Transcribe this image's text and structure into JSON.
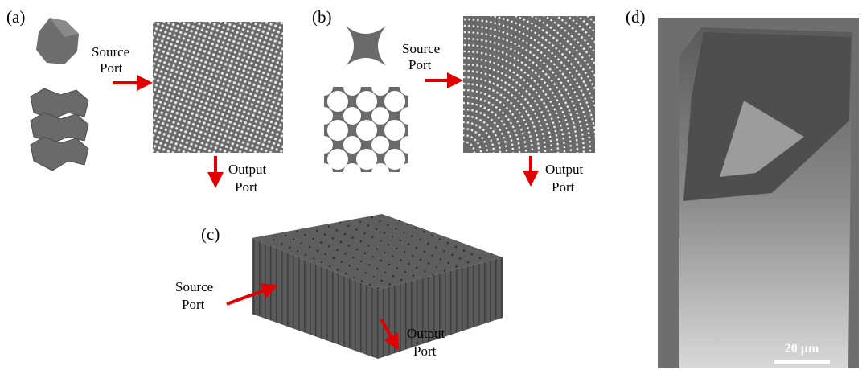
{
  "panels": {
    "a": {
      "label": "(a)",
      "source_port": [
        "Source",
        "Port"
      ],
      "output_port": [
        "Output",
        "Port"
      ]
    },
    "b": {
      "label": "(b)",
      "source_port": [
        "Source",
        "Port"
      ],
      "output_port": [
        "Output",
        "Port"
      ]
    },
    "c": {
      "label": "(c)",
      "source_port": [
        "Source",
        "Port"
      ],
      "output_port": [
        "Output",
        "Port"
      ]
    },
    "d": {
      "label": "(d)",
      "scale_bar": "20 μm"
    }
  }
}
